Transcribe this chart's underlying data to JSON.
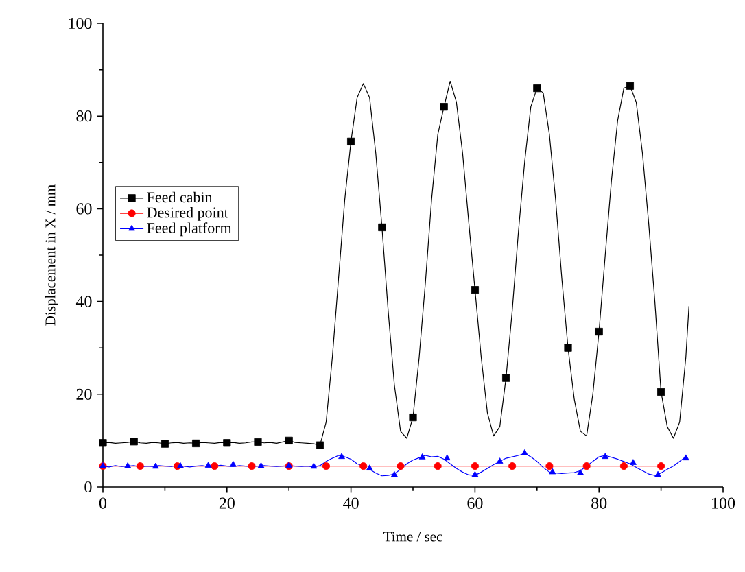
{
  "chart_data": {
    "type": "line",
    "xlabel": "Time / sec",
    "ylabel": "Displacement in X / mm",
    "xlim": [
      0,
      100
    ],
    "ylim": [
      0,
      100
    ],
    "xticks": [
      0,
      20,
      40,
      60,
      80,
      100
    ],
    "yticks": [
      0,
      20,
      40,
      60,
      80,
      100
    ],
    "legend": "left",
    "grid": false,
    "series": [
      {
        "name": "Feed cabin",
        "color": "#000000",
        "x": [
          0,
          1,
          2,
          3,
          4,
          5,
          6,
          7,
          8,
          9,
          10,
          11,
          12,
          13,
          14,
          15,
          16,
          17,
          18,
          19,
          20,
          21,
          22,
          23,
          24,
          25,
          26,
          27,
          28,
          29,
          30,
          31,
          32,
          33,
          34,
          35,
          36,
          37,
          38,
          39,
          40,
          41,
          42,
          43,
          44,
          45,
          46,
          47,
          48,
          49,
          50,
          51,
          52,
          53,
          54,
          55,
          56,
          57,
          58,
          59,
          60,
          61,
          62,
          63,
          64,
          65,
          66,
          67,
          68,
          69,
          70,
          71,
          72,
          73,
          74,
          75,
          76,
          77,
          78,
          79,
          80,
          81,
          82,
          83,
          84,
          85,
          86,
          87,
          88,
          89,
          90,
          91,
          92,
          93,
          94,
          94.5
        ],
        "values": [
          9.5,
          9.6,
          9.4,
          9.5,
          9.6,
          9.8,
          9.5,
          9.4,
          9.6,
          9.5,
          9.3,
          9.5,
          9.6,
          9.4,
          9.5,
          9.4,
          9.6,
          9.5,
          9.4,
          9.6,
          9.5,
          9.6,
          9.4,
          9.5,
          9.7,
          9.7,
          9.5,
          9.6,
          9.4,
          9.7,
          10,
          9.6,
          9.5,
          9.4,
          9.3,
          9.0,
          14,
          28,
          45,
          62,
          74.5,
          84,
          87,
          84,
          72,
          56,
          38,
          22,
          12,
          10.5,
          15,
          28,
          44,
          62,
          76,
          82,
          87.5,
          83,
          72,
          57,
          42.5,
          28,
          16,
          11,
          13,
          23.5,
          38,
          55,
          70,
          82,
          86,
          85,
          76,
          62,
          45,
          30,
          19,
          12,
          11,
          20,
          33.5,
          50,
          66,
          79,
          86,
          86.5,
          83,
          72,
          57,
          40,
          20.5,
          13,
          10.5,
          14,
          28,
          39
        ]
      },
      {
        "name": "Desired point",
        "color": "#ff0000",
        "marker": "circle",
        "x": [
          0,
          6,
          12,
          18,
          24,
          30,
          36,
          42,
          48,
          54,
          60,
          66,
          72,
          78,
          84,
          90
        ],
        "values": [
          4.5,
          4.5,
          4.5,
          4.5,
          4.5,
          4.5,
          4.5,
          4.5,
          4.5,
          4.5,
          4.5,
          4.5,
          4.5,
          4.5,
          4.5,
          4.5
        ]
      },
      {
        "name": "Feed platform",
        "color": "#0000ff",
        "x": [
          0,
          1,
          2,
          3,
          4,
          5,
          6,
          7,
          8,
          9,
          10,
          11,
          12,
          13,
          14,
          15,
          16,
          17,
          18,
          19,
          20,
          21,
          22,
          23,
          24,
          25,
          26,
          27,
          28,
          29,
          30,
          31,
          32,
          33,
          34,
          35,
          36,
          37,
          38,
          39,
          40,
          41,
          42,
          43,
          44,
          45,
          46,
          47,
          48,
          49,
          50,
          51,
          52,
          53,
          54,
          55,
          56,
          57,
          58,
          59,
          60,
          61,
          62,
          63,
          64,
          65,
          66,
          67,
          68,
          69,
          70,
          71,
          72,
          73,
          74,
          75,
          76,
          77,
          78,
          79,
          80,
          81,
          82,
          83,
          84,
          85,
          86,
          87,
          88,
          89,
          90,
          91,
          92,
          93,
          94
        ],
        "values": [
          4.5,
          4.3,
          4.6,
          4.4,
          4.5,
          4.6,
          4.3,
          4.5,
          4.4,
          4.6,
          4.5,
          4.4,
          4.6,
          4.5,
          4.3,
          4.5,
          4.6,
          4.4,
          4.5,
          4.7,
          4.5,
          4.4,
          4.6,
          4.5,
          4.4,
          4.5,
          4.6,
          4.5,
          4.4,
          4.5,
          4.6,
          4.5,
          4.4,
          4.5,
          4.3,
          4.6,
          5.5,
          6.2,
          6.8,
          6.5,
          6.0,
          5.0,
          4.5,
          3.8,
          3.0,
          2.4,
          2.5,
          2.8,
          3.8,
          5.0,
          5.8,
          6.3,
          6.8,
          6.5,
          6.6,
          6.0,
          5.0,
          4.0,
          3.2,
          2.6,
          2.5,
          3.2,
          4.0,
          4.8,
          5.5,
          6.2,
          6.5,
          6.8,
          7.2,
          6.5,
          5.5,
          4.2,
          3.2,
          3.0,
          2.9,
          3.0,
          3.1,
          3.5,
          4.5,
          5.5,
          6.5,
          6.8,
          6.4,
          6.0,
          5.5,
          5.0,
          4.2,
          3.5,
          2.8,
          2.5,
          3.0,
          3.8,
          4.5,
          5.5,
          6.5
        ]
      },
      {
        "type": "scatter",
        "color": "#000000",
        "marker": "square",
        "x": [
          0,
          5,
          10,
          15,
          20,
          25,
          30,
          35,
          40,
          45,
          50,
          55,
          60,
          65,
          70,
          75,
          80,
          85,
          90
        ],
        "values": [
          9.5,
          9.8,
          9.3,
          9.4,
          9.5,
          9.7,
          10,
          9,
          74.5,
          56,
          15,
          82,
          42.5,
          23.5,
          86,
          30,
          33.5,
          86.5,
          20.5
        ]
      },
      {
        "type": "scatter",
        "color": "#0000ff",
        "marker": "triangle",
        "x": [
          0,
          4,
          8.5,
          12.5,
          17,
          21,
          25.5,
          30,
          34,
          38.5,
          43,
          47,
          51.5,
          55.5,
          60,
          64,
          68,
          72.5,
          77,
          81,
          85.5,
          89.5,
          94
        ],
        "values": [
          4.5,
          4.5,
          4.4,
          4.5,
          4.6,
          4.8,
          4.5,
          4.6,
          4.4,
          6.5,
          4,
          2.6,
          6.4,
          6.2,
          2.6,
          5.5,
          7.3,
          3.2,
          3.0,
          6.5,
          5.2,
          2.6,
          6.2
        ]
      }
    ]
  }
}
